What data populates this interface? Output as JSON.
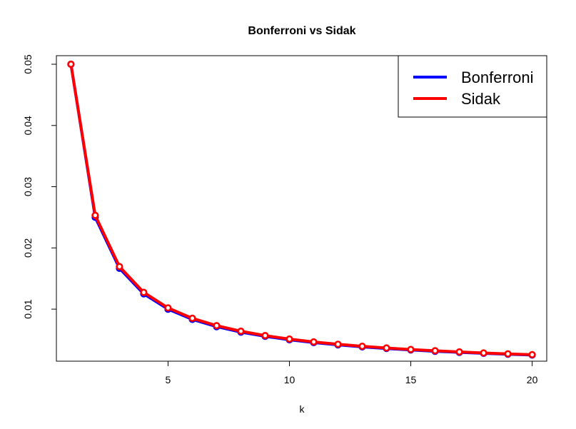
{
  "chart_data": {
    "type": "line",
    "title": "Bonferroni vs Sidak",
    "xlabel": "k",
    "ylabel": "",
    "xlim": [
      0.4,
      20.6
    ],
    "ylim": [
      0.0015,
      0.0514
    ],
    "x_ticks": [
      5,
      10,
      15,
      20
    ],
    "y_ticks": [
      0.01,
      0.02,
      0.03,
      0.04,
      0.05
    ],
    "x_tick_labels": [
      "5",
      "10",
      "15",
      "20"
    ],
    "y_tick_labels": [
      "0.01",
      "0.02",
      "0.03",
      "0.04",
      "0.05"
    ],
    "legend_position": "top-right",
    "grid": false,
    "x": [
      1,
      2,
      3,
      4,
      5,
      6,
      7,
      8,
      9,
      10,
      11,
      12,
      13,
      14,
      15,
      16,
      17,
      18,
      19,
      20
    ],
    "series": [
      {
        "name": "Bonferroni",
        "color": "#0000ff",
        "values": [
          0.05,
          0.025,
          0.016667,
          0.0125,
          0.01,
          0.008333,
          0.007143,
          0.00625,
          0.005556,
          0.005,
          0.004545,
          0.004167,
          0.003846,
          0.003571,
          0.003333,
          0.003125,
          0.002941,
          0.002778,
          0.002632,
          0.0025
        ]
      },
      {
        "name": "Sidak",
        "color": "#ff0000",
        "values": [
          0.05,
          0.025321,
          0.016952,
          0.012741,
          0.010206,
          0.008512,
          0.007301,
          0.006391,
          0.005683,
          0.005116,
          0.004652,
          0.004265,
          0.003938,
          0.003657,
          0.003414,
          0.0032,
          0.003013,
          0.002846,
          0.002696,
          0.002561
        ]
      }
    ]
  }
}
